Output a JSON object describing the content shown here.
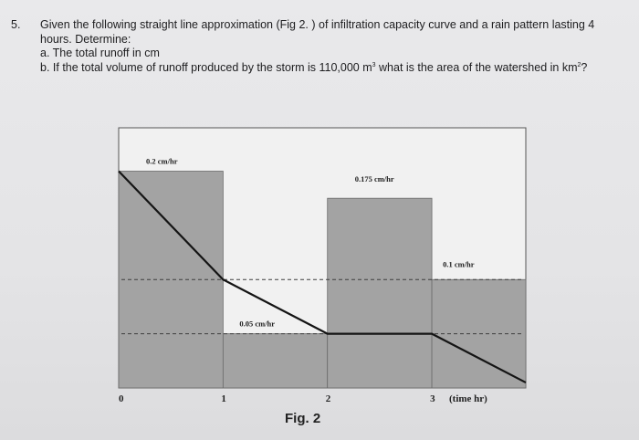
{
  "question": {
    "number": "5.",
    "stem": "Given the following straight line approximation (Fig 2. ) of infiltration capacity curve and a rain pattern lasting 4 hours. Determine:",
    "part_a": "a. The total runoff in cm",
    "part_b_pre": "b. If the total volume of runoff produced by the storm is 110,000 m",
    "part_b_sup1": "3",
    "part_b_mid": " what is the area of the watershed in km",
    "part_b_sup2": "2",
    "part_b_post": "?"
  },
  "figure": {
    "caption": "Fig. 2"
  },
  "chart_data": {
    "type": "bar",
    "description_role": "rainfall hyetograph with infiltration capacity curve overlay",
    "x_tick_labels": [
      "0",
      "1",
      "2",
      "3",
      "(time hr)"
    ],
    "x_ticks": [
      0,
      1,
      2,
      3
    ],
    "xlim": [
      0,
      3.9
    ],
    "y_range_cm_per_hr": [
      0,
      0.24
    ],
    "rain_intensity": [
      {
        "start": 0,
        "end": 1,
        "value": 0.2,
        "label": "0.2 cm/hr"
      },
      {
        "start": 1,
        "end": 2,
        "value": 0.05,
        "label": "0.05 cm/hr"
      },
      {
        "start": 2,
        "end": 3,
        "value": 0.175,
        "label": "0.175 cm/hr"
      },
      {
        "start": 3,
        "end": 4,
        "value": 0.1,
        "label": "0.1 cm/hr"
      }
    ],
    "infiltration_curve": {
      "x": [
        0,
        1,
        2,
        3,
        4
      ],
      "y": [
        0.2,
        0.1,
        0.05,
        0.05,
        0.0
      ]
    },
    "reference_lines": [
      0.1,
      0.05
    ],
    "colors": {
      "bars": "#a3a3a3",
      "plot_background": "#f1f1f1",
      "curve": "#141414"
    }
  }
}
